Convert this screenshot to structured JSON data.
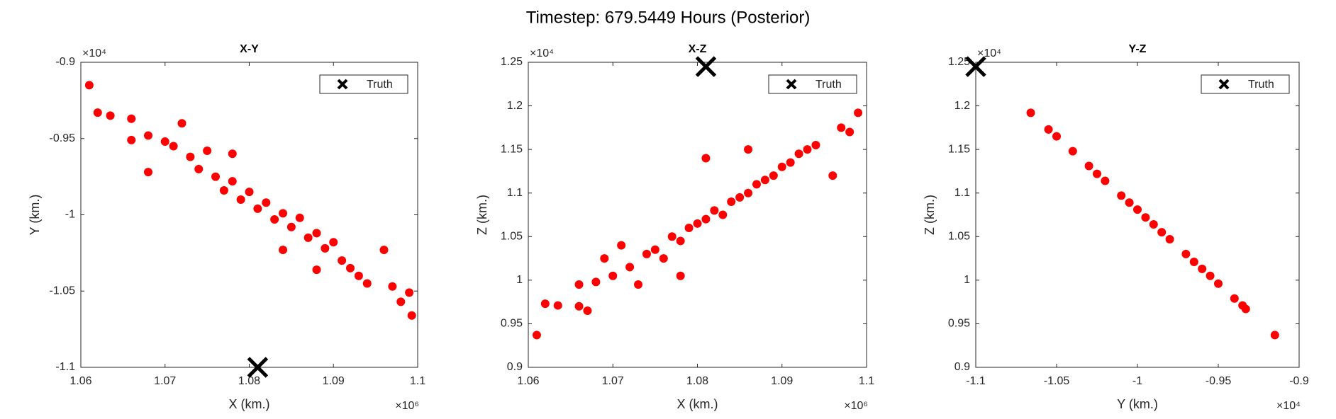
{
  "title": "Timestep: 679.5449 Hours (Posterior)",
  "chart_data": [
    {
      "type": "scatter",
      "title": "X-Y",
      "xlabel": "X (km.)",
      "ylabel": "Y (km.)",
      "x_scale_label": "×10⁶",
      "y_scale_label": "×10⁴",
      "xlim": [
        1.06,
        1.1
      ],
      "xticks": [
        1.06,
        1.07,
        1.08,
        1.09,
        1.1
      ],
      "ylim": [
        -1.1,
        -0.9
      ],
      "yticks": [
        -1.1,
        -1.05,
        -1,
        -0.95,
        -0.9
      ],
      "points": {
        "color": "#ff0000",
        "x": [
          1.061,
          1.062,
          1.0635,
          1.066,
          1.066,
          1.068,
          1.07,
          1.071,
          1.073,
          1.074,
          1.075,
          1.076,
          1.077,
          1.078,
          1.079,
          1.08,
          1.081,
          1.082,
          1.083,
          1.084,
          1.085,
          1.086,
          1.087,
          1.088,
          1.089,
          1.09,
          1.091,
          1.092,
          1.093,
          1.094,
          1.096,
          1.097,
          1.098,
          1.099,
          1.0993,
          1.068,
          1.072,
          1.078,
          1.084,
          1.088
        ],
        "y": [
          -0.915,
          -0.933,
          -0.935,
          -0.937,
          -0.951,
          -0.948,
          -0.952,
          -0.955,
          -0.962,
          -0.97,
          -0.958,
          -0.975,
          -0.984,
          -0.978,
          -0.99,
          -0.985,
          -0.996,
          -0.992,
          -1.003,
          -0.999,
          -1.008,
          -1.002,
          -1.015,
          -1.012,
          -1.022,
          -1.018,
          -1.03,
          -1.035,
          -1.04,
          -1.045,
          -1.023,
          -1.047,
          -1.057,
          -1.051,
          -1.066,
          -0.972,
          -0.94,
          -0.96,
          -1.023,
          -1.036
        ]
      },
      "truth": {
        "name": "Truth",
        "color": "#000000",
        "x": 1.081,
        "y": -1.1
      }
    },
    {
      "type": "scatter",
      "title": "X-Z",
      "xlabel": "X (km.)",
      "ylabel": "Z (km.)",
      "x_scale_label": "×10⁶",
      "y_scale_label": "×10⁴",
      "xlim": [
        1.06,
        1.1
      ],
      "xticks": [
        1.06,
        1.07,
        1.08,
        1.09,
        1.1
      ],
      "ylim": [
        0.9,
        1.25
      ],
      "yticks": [
        0.9,
        0.95,
        1,
        1.05,
        1.1,
        1.15,
        1.2,
        1.25
      ],
      "points": {
        "color": "#ff0000",
        "x": [
          1.061,
          1.062,
          1.0635,
          1.066,
          1.066,
          1.067,
          1.068,
          1.069,
          1.07,
          1.072,
          1.073,
          1.074,
          1.075,
          1.076,
          1.077,
          1.078,
          1.079,
          1.08,
          1.081,
          1.082,
          1.083,
          1.084,
          1.085,
          1.086,
          1.087,
          1.088,
          1.089,
          1.09,
          1.091,
          1.092,
          1.093,
          1.094,
          1.096,
          1.097,
          1.098,
          1.099,
          1.081,
          1.078,
          1.086,
          1.071
        ],
        "y": [
          0.937,
          0.973,
          0.971,
          0.97,
          0.995,
          0.965,
          0.998,
          1.025,
          1.005,
          1.015,
          0.995,
          1.03,
          1.035,
          1.025,
          1.05,
          1.045,
          1.06,
          1.065,
          1.07,
          1.08,
          1.075,
          1.09,
          1.095,
          1.1,
          1.11,
          1.115,
          1.12,
          1.13,
          1.135,
          1.145,
          1.15,
          1.155,
          1.12,
          1.175,
          1.17,
          1.192,
          1.14,
          1.005,
          1.15,
          1.04
        ]
      },
      "truth": {
        "name": "Truth",
        "color": "#000000",
        "x": 1.081,
        "y": 1.245
      }
    },
    {
      "type": "scatter",
      "title": "Y-Z",
      "xlabel": "Y (km.)",
      "ylabel": "Z (km.)",
      "x_scale_label": "×10⁴",
      "y_scale_label": "×10⁴",
      "xlim": [
        -1.1,
        -0.9
      ],
      "xticks": [
        -1.1,
        -1.05,
        -1,
        -0.95,
        -0.9
      ],
      "ylim": [
        0.9,
        1.25
      ],
      "yticks": [
        0.9,
        0.95,
        1,
        1.05,
        1.1,
        1.15,
        1.2,
        1.25
      ],
      "points": {
        "color": "#ff0000",
        "x": [
          -1.066,
          -1.055,
          -1.05,
          -1.04,
          -1.03,
          -1.025,
          -1.02,
          -1.01,
          -1.005,
          -1.0,
          -0.995,
          -0.99,
          -0.985,
          -0.98,
          -0.97,
          -0.965,
          -0.96,
          -0.955,
          -0.95,
          -0.94,
          -0.935,
          -0.933,
          -0.915
        ],
        "y": [
          1.192,
          1.173,
          1.165,
          1.148,
          1.131,
          1.122,
          1.114,
          1.097,
          1.089,
          1.081,
          1.072,
          1.064,
          1.055,
          1.047,
          1.03,
          1.021,
          1.013,
          1.005,
          0.996,
          0.979,
          0.971,
          0.967,
          0.937
        ]
      },
      "truth": {
        "name": "Truth",
        "color": "#000000",
        "x": -1.1,
        "y": 1.245
      }
    }
  ]
}
